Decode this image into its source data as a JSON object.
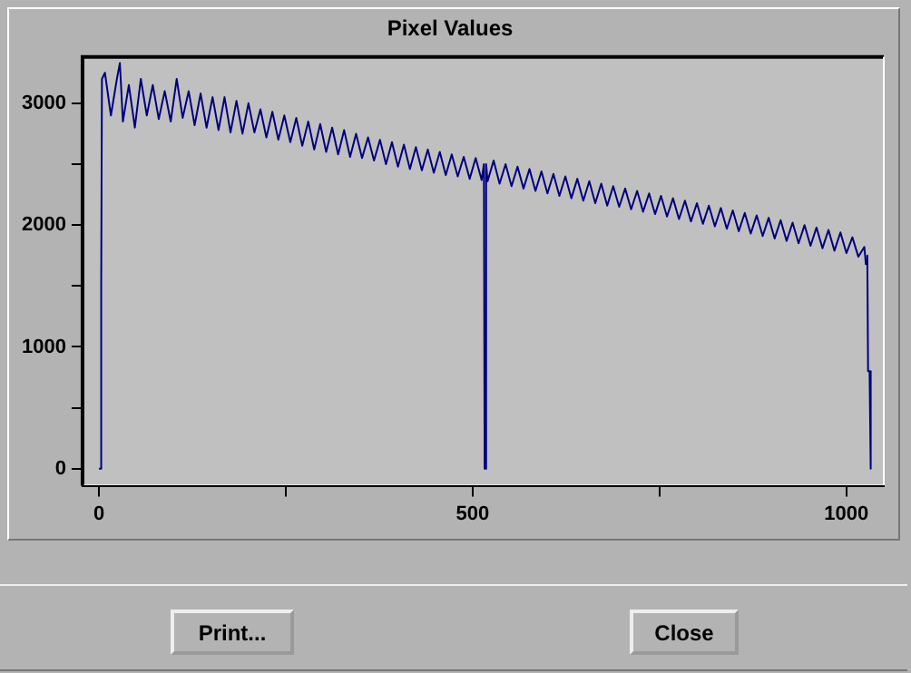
{
  "chart_data": {
    "type": "line",
    "title": "Pixel Values",
    "x": [
      0,
      2,
      3,
      4,
      8,
      16,
      24,
      28,
      32,
      40,
      48,
      56,
      64,
      72,
      80,
      88,
      96,
      104,
      112,
      120,
      128,
      136,
      144,
      152,
      160,
      168,
      176,
      184,
      192,
      200,
      208,
      216,
      224,
      232,
      240,
      248,
      256,
      264,
      272,
      280,
      288,
      296,
      304,
      312,
      320,
      328,
      336,
      344,
      352,
      360,
      368,
      376,
      384,
      392,
      400,
      408,
      416,
      424,
      432,
      440,
      448,
      456,
      464,
      472,
      480,
      488,
      496,
      504,
      512,
      515,
      516,
      518,
      520,
      528,
      536,
      544,
      552,
      560,
      568,
      576,
      584,
      592,
      600,
      608,
      616,
      624,
      632,
      640,
      648,
      656,
      664,
      672,
      680,
      688,
      696,
      704,
      712,
      720,
      728,
      736,
      744,
      752,
      760,
      768,
      776,
      784,
      792,
      800,
      808,
      816,
      824,
      832,
      840,
      848,
      856,
      864,
      872,
      880,
      888,
      896,
      904,
      912,
      920,
      928,
      936,
      944,
      952,
      960,
      968,
      976,
      984,
      992,
      1000,
      1008,
      1016,
      1024,
      1026,
      1028,
      1029,
      1031,
      1032,
      1033
    ],
    "series": [
      {
        "color": "#00007f",
        "values": [
          0,
          0,
          1500,
          3200,
          3250,
          2900,
          3200,
          3330,
          2850,
          3150,
          2800,
          3200,
          2900,
          3150,
          2870,
          3100,
          2850,
          3200,
          2880,
          3100,
          2820,
          3080,
          2800,
          3050,
          2780,
          3050,
          2760,
          3020,
          2750,
          3000,
          2760,
          2950,
          2720,
          2930,
          2700,
          2900,
          2680,
          2880,
          2650,
          2850,
          2620,
          2830,
          2600,
          2800,
          2580,
          2780,
          2560,
          2750,
          2550,
          2720,
          2530,
          2700,
          2500,
          2680,
          2480,
          2660,
          2460,
          2640,
          2450,
          2620,
          2430,
          2600,
          2410,
          2580,
          2400,
          2560,
          2380,
          2550,
          2370,
          2500,
          0,
          2500,
          2360,
          2530,
          2340,
          2500,
          2320,
          2480,
          2300,
          2460,
          2280,
          2440,
          2260,
          2420,
          2240,
          2400,
          2220,
          2380,
          2200,
          2360,
          2180,
          2340,
          2160,
          2320,
          2150,
          2300,
          2130,
          2280,
          2110,
          2260,
          2090,
          2240,
          2070,
          2220,
          2050,
          2200,
          2030,
          2180,
          2010,
          2160,
          1990,
          2140,
          1970,
          2120,
          1950,
          2100,
          1930,
          2080,
          1910,
          2060,
          1890,
          2040,
          1870,
          2020,
          1850,
          2000,
          1830,
          1980,
          1810,
          1960,
          1790,
          1940,
          1770,
          1900,
          1740,
          1820,
          1680,
          1750,
          800,
          800,
          0,
          0
        ]
      }
    ],
    "xlim": [
      -22,
      1050
    ],
    "ylim": [
      -140,
      3380
    ],
    "xticks": [
      0,
      {
        "value": 250,
        "label": null
      },
      500,
      {
        "value": 750,
        "label": null
      },
      1000
    ],
    "yticks": [
      0,
      {
        "value": 500,
        "label": null
      },
      1000,
      {
        "value": 1500,
        "label": null
      },
      2000,
      {
        "value": 2500,
        "label": null
      },
      3000
    ],
    "marker": "none",
    "legend": false,
    "annotations": [
      "Print...",
      "Close"
    ]
  }
}
